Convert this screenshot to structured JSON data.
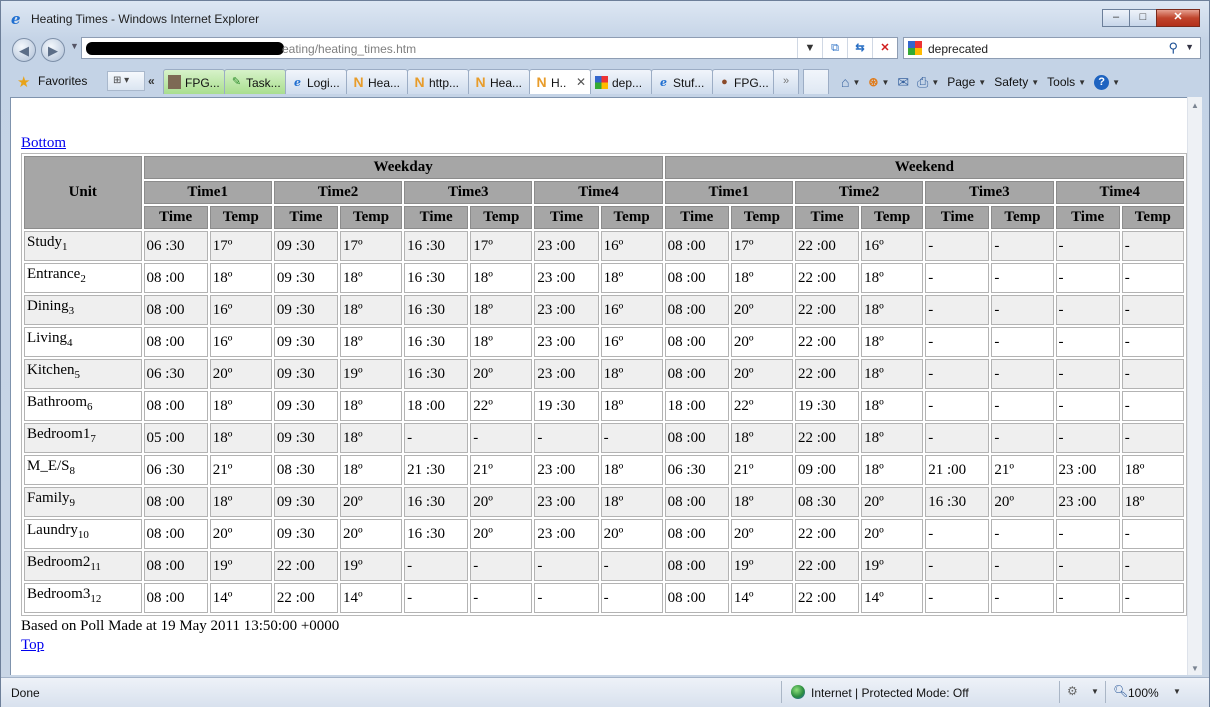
{
  "window": {
    "title": "Heating Times - Windows Internet Explorer",
    "buttons": {
      "minimize": "–",
      "maximize": "□",
      "close": "✕"
    }
  },
  "address": {
    "url": "eating/heating_times.htm",
    "search_value": "deprecated"
  },
  "toolbar": {
    "favorites_label": "Favorites",
    "tabs": [
      {
        "label": "FPG...",
        "icon": "person-photo-icon",
        "style": "green"
      },
      {
        "label": "Task...",
        "icon": "task-icon",
        "style": "green"
      },
      {
        "label": "Logi...",
        "icon": "ie-page-icon",
        "style": "normal"
      },
      {
        "label": "Hea...",
        "icon": "n-page-icon",
        "style": "normal"
      },
      {
        "label": "http...",
        "icon": "n-page-icon",
        "style": "normal"
      },
      {
        "label": "Hea...",
        "icon": "n-page-icon",
        "style": "normal"
      },
      {
        "label": "H..",
        "icon": "n-page-icon",
        "style": "active"
      },
      {
        "label": "dep...",
        "icon": "google-icon",
        "style": "normal"
      },
      {
        "label": "Stuf...",
        "icon": "ie-page-icon",
        "style": "normal"
      },
      {
        "label": "FPG...",
        "icon": "cookie-icon",
        "style": "normal"
      }
    ],
    "tabs_more": "»",
    "commands": {
      "page": "Page",
      "safety": "Safety",
      "tools": "Tools"
    }
  },
  "page": {
    "bottom_link": "Bottom",
    "top_link": "Top",
    "poll_text": "Based on Poll Made at 19 May 2011 13:50:00 +0000",
    "headers": {
      "unit": "Unit",
      "weekday": "Weekday",
      "weekend": "Weekend",
      "slots": [
        "Time1",
        "Time2",
        "Time3",
        "Time4",
        "Time1",
        "Time2",
        "Time3",
        "Time4"
      ],
      "sub": [
        "Time",
        "Temp",
        "Time",
        "Temp",
        "Time",
        "Temp",
        "Time",
        "Temp",
        "Time",
        "Temp",
        "Time",
        "Temp",
        "Time",
        "Temp",
        "Time",
        "Temp"
      ]
    },
    "rows": [
      {
        "name": "Study",
        "num": "1",
        "cells": [
          "06 :30",
          "17º",
          "09 :30",
          "17º",
          "16 :30",
          "17º",
          "23 :00",
          "16º",
          "08 :00",
          "17º",
          "22 :00",
          "16º",
          "-",
          "-",
          "-",
          "-"
        ]
      },
      {
        "name": "Entrance",
        "num": "2",
        "cells": [
          "08 :00",
          "18º",
          "09 :30",
          "18º",
          "16 :30",
          "18º",
          "23 :00",
          "18º",
          "08 :00",
          "18º",
          "22 :00",
          "18º",
          "-",
          "-",
          "-",
          "-"
        ]
      },
      {
        "name": "Dining",
        "num": "3",
        "cells": [
          "08 :00",
          "16º",
          "09 :30",
          "18º",
          "16 :30",
          "18º",
          "23 :00",
          "16º",
          "08 :00",
          "20º",
          "22 :00",
          "18º",
          "-",
          "-",
          "-",
          "-"
        ]
      },
      {
        "name": "Living",
        "num": "4",
        "cells": [
          "08 :00",
          "16º",
          "09 :30",
          "18º",
          "16 :30",
          "18º",
          "23 :00",
          "16º",
          "08 :00",
          "20º",
          "22 :00",
          "18º",
          "-",
          "-",
          "-",
          "-"
        ]
      },
      {
        "name": "Kitchen",
        "num": "5",
        "cells": [
          "06 :30",
          "20º",
          "09 :30",
          "19º",
          "16 :30",
          "20º",
          "23 :00",
          "18º",
          "08 :00",
          "20º",
          "22 :00",
          "18º",
          "-",
          "-",
          "-",
          "-"
        ]
      },
      {
        "name": "Bathroom",
        "num": "6",
        "cells": [
          "08 :00",
          "18º",
          "09 :30",
          "18º",
          "18 :00",
          "22º",
          "19 :30",
          "18º",
          "18 :00",
          "22º",
          "19 :30",
          "18º",
          "-",
          "-",
          "-",
          "-"
        ]
      },
      {
        "name": "Bedroom1",
        "num": "7",
        "cells": [
          "05 :00",
          "18º",
          "09 :30",
          "18º",
          "-",
          "-",
          "-",
          "-",
          "08 :00",
          "18º",
          "22 :00",
          "18º",
          "-",
          "-",
          "-",
          "-"
        ]
      },
      {
        "name": "M_E/S",
        "num": "8",
        "cells": [
          "06 :30",
          "21º",
          "08 :30",
          "18º",
          "21 :30",
          "21º",
          "23 :00",
          "18º",
          "06 :30",
          "21º",
          "09 :00",
          "18º",
          "21 :00",
          "21º",
          "23 :00",
          "18º"
        ]
      },
      {
        "name": "Family",
        "num": "9",
        "cells": [
          "08 :00",
          "18º",
          "09 :30",
          "20º",
          "16 :30",
          "20º",
          "23 :00",
          "18º",
          "08 :00",
          "18º",
          "08 :30",
          "20º",
          "16 :30",
          "20º",
          "23 :00",
          "18º"
        ]
      },
      {
        "name": "Laundry",
        "num": "10",
        "cells": [
          "08 :00",
          "20º",
          "09 :30",
          "20º",
          "16 :30",
          "20º",
          "23 :00",
          "20º",
          "08 :00",
          "20º",
          "22 :00",
          "20º",
          "-",
          "-",
          "-",
          "-"
        ]
      },
      {
        "name": "Bedroom2",
        "num": "11",
        "cells": [
          "08 :00",
          "19º",
          "22 :00",
          "19º",
          "-",
          "-",
          "-",
          "-",
          "08 :00",
          "19º",
          "22 :00",
          "19º",
          "-",
          "-",
          "-",
          "-"
        ]
      },
      {
        "name": "Bedroom3",
        "num": "12",
        "cells": [
          "08 :00",
          "14º",
          "22 :00",
          "14º",
          "-",
          "-",
          "-",
          "-",
          "08 :00",
          "14º",
          "22 :00",
          "14º",
          "-",
          "-",
          "-",
          "-"
        ]
      }
    ]
  },
  "status": {
    "left": "Done",
    "zone": "Internet | Protected Mode: Off",
    "zoom": "100%"
  }
}
